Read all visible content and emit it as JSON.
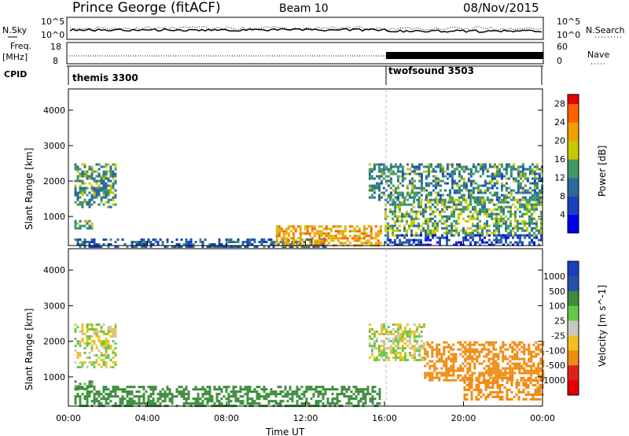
{
  "header": {
    "station": "Prince George (fitACF)",
    "beam": "Beam 10",
    "date": "08/Nov/2015"
  },
  "top_panels": {
    "nsky_label": "N.Sky",
    "nsky_ticks": [
      "10^5",
      "10^0"
    ],
    "nsearch_label": "N.Search",
    "nsearch_ticks": [
      "10^5",
      "10^0"
    ],
    "freq_label": "Freq.",
    "freq_unit": "[MHz]",
    "freq_ticks": [
      "18",
      "8"
    ],
    "nave_label": "Nave",
    "nave_ticks": [
      "60",
      "0"
    ],
    "cpid_label": "CPID",
    "cpid_segments": [
      {
        "name": "themis 3300",
        "start": 0,
        "end": 16
      },
      {
        "name": "twofsound 3503",
        "start": 16,
        "end": 24
      }
    ]
  },
  "chart_data": [
    {
      "type": "heatmap",
      "title": "",
      "xlabel": "",
      "ylabel": "Slant Range [km]",
      "xlim": [
        0,
        24
      ],
      "ylim": [
        180,
        4600
      ],
      "yticks": [
        "1000",
        "2000",
        "3000",
        "4000"
      ],
      "yticks_values": [
        1000,
        2000,
        3000,
        4000
      ],
      "colorbar": {
        "label": "Power [dB]",
        "ticks": [
          "4",
          "8",
          "12",
          "16",
          "20",
          "24",
          "28"
        ],
        "tick_values": [
          4,
          8,
          12,
          16,
          20,
          24,
          28
        ],
        "range": [
          0,
          30
        ]
      },
      "echo_regions": [
        {
          "t0": 0.3,
          "t1": 2.4,
          "r0": 1300,
          "r1": 2500,
          "value": 13
        },
        {
          "t0": 0.3,
          "t1": 1.2,
          "r0": 700,
          "r1": 900,
          "value": 14
        },
        {
          "t0": 0.3,
          "t1": 13.0,
          "r0": 180,
          "r1": 380,
          "value": 9
        },
        {
          "t0": 10.5,
          "t1": 15.8,
          "r0": 180,
          "r1": 750,
          "value": 22
        },
        {
          "t0": 15.2,
          "t1": 24.0,
          "r0": 1500,
          "r1": 2500,
          "value": 12
        },
        {
          "t0": 16.0,
          "t1": 24.0,
          "r0": 500,
          "r1": 1500,
          "value": 15
        },
        {
          "t0": 16.0,
          "t1": 24.0,
          "r0": 180,
          "r1": 500,
          "value": 6
        }
      ]
    },
    {
      "type": "heatmap",
      "title": "",
      "xlabel": "Time UT",
      "ylabel": "Slant Range [km]",
      "xlim": [
        0,
        24
      ],
      "ylim": [
        180,
        4600
      ],
      "xticks": [
        "00:00",
        "04:00",
        "08:00",
        "12:00",
        "16:00",
        "20:00",
        "00:00"
      ],
      "xticks_values": [
        0,
        4,
        8,
        12,
        16,
        20,
        24
      ],
      "yticks": [
        "1000",
        "2000",
        "3000",
        "4000"
      ],
      "yticks_values": [
        1000,
        2000,
        3000,
        4000
      ],
      "colorbar": {
        "label": "Velocity [m s^-1]",
        "ticks": [
          "1000",
          "500",
          "100",
          "25",
          "-25",
          "-100",
          "-500",
          "-1000"
        ],
        "tick_values": [
          1000,
          500,
          100,
          25,
          -25,
          -100,
          -500,
          -1000
        ]
      },
      "echo_regions": [
        {
          "t0": 0.3,
          "t1": 2.4,
          "r0": 1300,
          "r1": 2500,
          "value": 0
        },
        {
          "t0": 0.3,
          "t1": 1.2,
          "r0": 700,
          "r1": 900,
          "value": 150
        },
        {
          "t0": 0.3,
          "t1": 15.8,
          "r0": 180,
          "r1": 750,
          "value": 200
        },
        {
          "t0": 15.2,
          "t1": 18.0,
          "r0": 1500,
          "r1": 2500,
          "value": 0
        },
        {
          "t0": 18.0,
          "t1": 24.0,
          "r0": 900,
          "r1": 2000,
          "value": -300
        },
        {
          "t0": 20.0,
          "t1": 24.0,
          "r0": 400,
          "r1": 1000,
          "value": -400
        }
      ]
    }
  ]
}
